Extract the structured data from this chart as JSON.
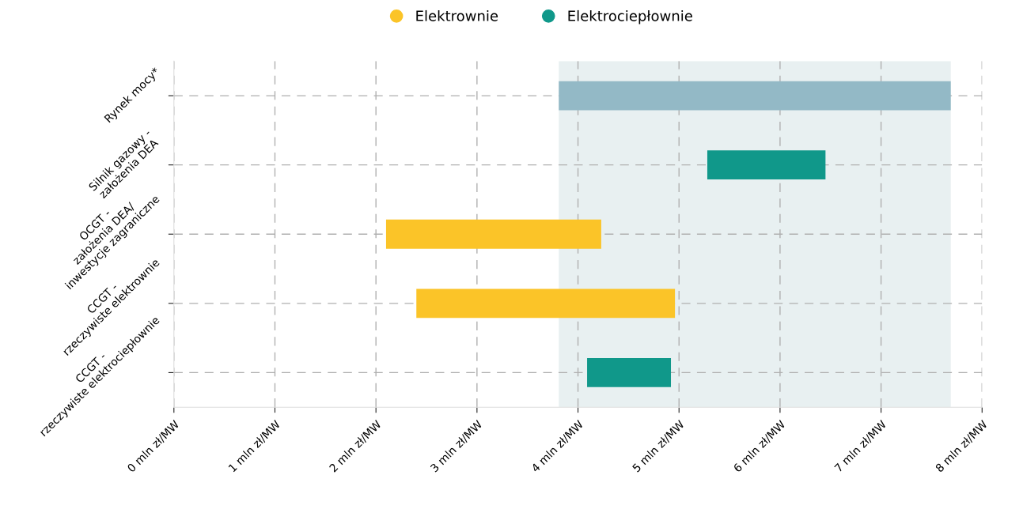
{
  "chart_data": {
    "type": "bar",
    "orientation": "horizontal",
    "categories": [
      "Rynek mocy*",
      "Silnik gazowy -\nzałożenia DEA",
      "OCGT -\nzałożenia DEA/\ninwestycje zagraniczne",
      "CCGT -\nrzeczywiste elektrownie",
      "CCGT -\nrzeczywiste elektrociepłownie"
    ],
    "series": [
      {
        "color": "#93b9c6",
        "values": [
          3.88,
          null,
          null,
          null,
          null
        ],
        "base": [
          3.81,
          null,
          null,
          null,
          null
        ]
      },
      {
        "name": "Elektrownie",
        "color": "#fbc428",
        "values": [
          null,
          null,
          2.13,
          2.56,
          null
        ],
        "base": [
          null,
          null,
          2.1,
          2.4,
          null
        ]
      },
      {
        "name": "Elektrociepłownie",
        "color": "#10988a",
        "values": [
          null,
          1.17,
          null,
          null,
          0.83
        ],
        "base": [
          null,
          5.28,
          null,
          null,
          4.09
        ]
      }
    ],
    "xlim": [
      0,
      8
    ],
    "xticks": [
      {
        "value": 0,
        "label": "0 mln zł/MW"
      },
      {
        "value": 1,
        "label": "1 mln zł/MW"
      },
      {
        "value": 2,
        "label": "2 mln zł/MW"
      },
      {
        "value": 3,
        "label": "3 mln zł/MW"
      },
      {
        "value": 4,
        "label": "4 mln zł/MW"
      },
      {
        "value": 5,
        "label": "5 mln zł/MW"
      },
      {
        "value": 6,
        "label": "6 mln zł/MW"
      },
      {
        "value": 7,
        "label": "7 mln zł/MW"
      },
      {
        "value": 8,
        "label": "8 mln zł/MW"
      }
    ],
    "bands": [
      {
        "axis": "x",
        "from": 3.81,
        "to": 7.69,
        "color": "#e8f0f1"
      }
    ],
    "grid": true,
    "legend": "top",
    "marker": "circle",
    "line_style": "dashed"
  }
}
